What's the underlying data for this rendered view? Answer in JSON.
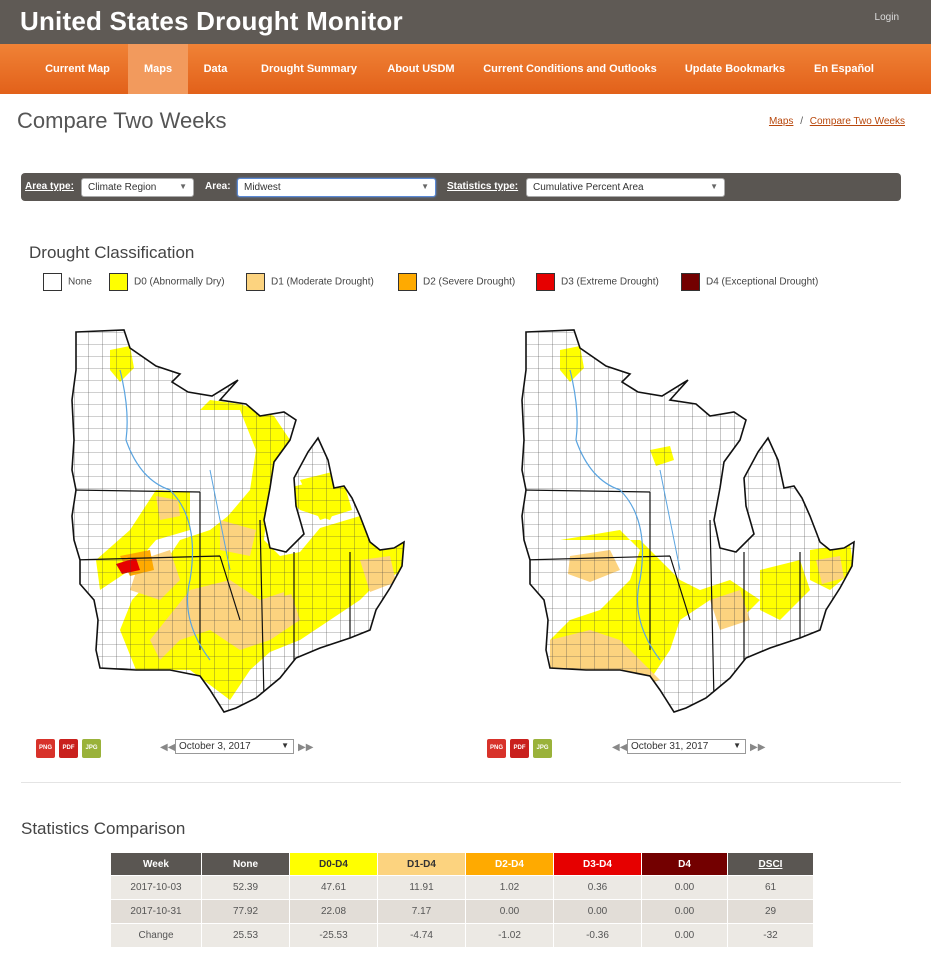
{
  "header": {
    "title": "United States Drought Monitor",
    "login": "Login"
  },
  "nav": {
    "items": [
      {
        "label": "Current Map"
      },
      {
        "label": "Maps"
      },
      {
        "label": "Data"
      },
      {
        "label": "Drought Summary"
      },
      {
        "label": "About USDM"
      },
      {
        "label": "Current Conditions and Outlooks"
      },
      {
        "label": "Update Bookmarks"
      },
      {
        "label": "En Español"
      }
    ],
    "active": "Maps"
  },
  "page": {
    "title": "Compare Two Weeks"
  },
  "breadcrumb": {
    "items": [
      "Maps",
      "Compare Two Weeks"
    ],
    "separator": "/"
  },
  "filters": {
    "area_type_label": "Area type:",
    "area_type_value": "Climate Region",
    "area_label": "Area:",
    "area_value": "Midwest",
    "stats_type_label": "Statistics type:",
    "stats_type_value": "Cumulative Percent Area"
  },
  "legend": {
    "title": "Drought Classification",
    "items": [
      {
        "label": "None",
        "color": "#ffffff"
      },
      {
        "label": "D0 (Abnormally Dry)",
        "color": "#ffff00"
      },
      {
        "label": "D1 (Moderate Drought)",
        "color": "#fcd37f"
      },
      {
        "label": "D2 (Severe Drought)",
        "color": "#ffaa00"
      },
      {
        "label": "D3 (Extreme Drought)",
        "color": "#e60000"
      },
      {
        "label": "D4 (Exceptional Drought)",
        "color": "#730000"
      }
    ]
  },
  "maps": [
    {
      "date": "October 3, 2017",
      "formats": [
        "PNG",
        "PDF",
        "JPG"
      ]
    },
    {
      "date": "October 31, 2017",
      "formats": [
        "PNG",
        "PDF",
        "JPG"
      ]
    }
  ],
  "stats": {
    "title": "Statistics Comparison",
    "headers": [
      "Week",
      "None",
      "D0-D4",
      "D1-D4",
      "D2-D4",
      "D3-D4",
      "D4",
      "DSCI"
    ],
    "header_colors": [
      "#5a5652",
      "#5a5652",
      "#ffff00",
      "#fcd37f",
      "#ffaa00",
      "#e60000",
      "#730000",
      "#5a5652"
    ],
    "header_text_colors": [
      "#ffffff",
      "#ffffff",
      "#333333",
      "#333333",
      "#ffffff",
      "#ffffff",
      "#ffffff",
      "#ffffff"
    ],
    "rows": [
      [
        "2017-10-03",
        "52.39",
        "47.61",
        "11.91",
        "1.02",
        "0.36",
        "0.00",
        "61"
      ],
      [
        "2017-10-31",
        "77.92",
        "22.08",
        "7.17",
        "0.00",
        "0.00",
        "0.00",
        "29"
      ],
      [
        "Change",
        "25.53",
        "-25.53",
        "-4.74",
        "-1.02",
        "-0.36",
        "0.00",
        "-32"
      ]
    ]
  }
}
